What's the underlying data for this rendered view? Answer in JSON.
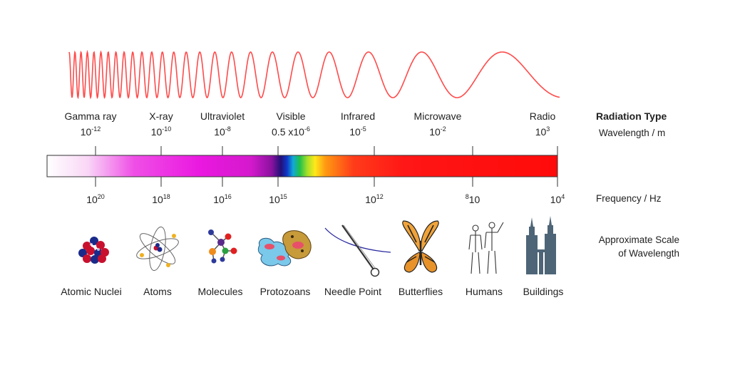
{
  "wave": {
    "color": "#ff4a4a",
    "description_icon": "sine-wave-icon"
  },
  "radiation_types": [
    {
      "name": "Gamma ray",
      "wl_base": "10",
      "wl_exp": "-12"
    },
    {
      "name": "X-ray",
      "wl_base": "10",
      "wl_exp": "-10"
    },
    {
      "name": "Ultraviolet",
      "wl_base": "10",
      "wl_exp": "-8"
    },
    {
      "name": "Visible",
      "wl_base": "0.5 x10",
      "wl_exp": "-6"
    },
    {
      "name": "Infrared",
      "wl_base": "10",
      "wl_exp": "-5"
    },
    {
      "name": "Microwave",
      "wl_base": "10",
      "wl_exp": "-2"
    },
    {
      "name": "Radio",
      "wl_base": "10",
      "wl_exp": "3"
    }
  ],
  "frequencies": [
    {
      "base": "10",
      "exp": "20"
    },
    {
      "base": "10",
      "exp": "18"
    },
    {
      "base": "10",
      "exp": "16"
    },
    {
      "base": "10",
      "exp": "15"
    },
    {
      "base": "10",
      "exp": "12"
    },
    {
      "base": "10",
      "exp": "8"
    },
    {
      "base": "10",
      "exp": "4"
    }
  ],
  "legend": {
    "radiation_type": "Radiation Type",
    "wavelength_unit": "Wavelength / m",
    "frequency_unit": "Frequency / Hz",
    "scale_line1": "Approximate Scale",
    "scale_line2": "of Wavelength"
  },
  "scale_objects": [
    {
      "label": "Atomic Nuclei",
      "icon": "atomic-nuclei-icon"
    },
    {
      "label": "Atoms",
      "icon": "atom-icon"
    },
    {
      "label": "Molecules",
      "icon": "molecule-icon"
    },
    {
      "label": "Protozoans",
      "icon": "protozoan-icon"
    },
    {
      "label": "Needle Point",
      "icon": "needle-icon"
    },
    {
      "label": "Butterflies",
      "icon": "butterfly-icon"
    },
    {
      "label": "Humans",
      "icon": "humans-icon"
    },
    {
      "label": "Buildings",
      "icon": "buildings-icon"
    }
  ],
  "colors": {
    "spectrum_border": "#333333",
    "text": "#222222",
    "building": "#4e6577"
  }
}
